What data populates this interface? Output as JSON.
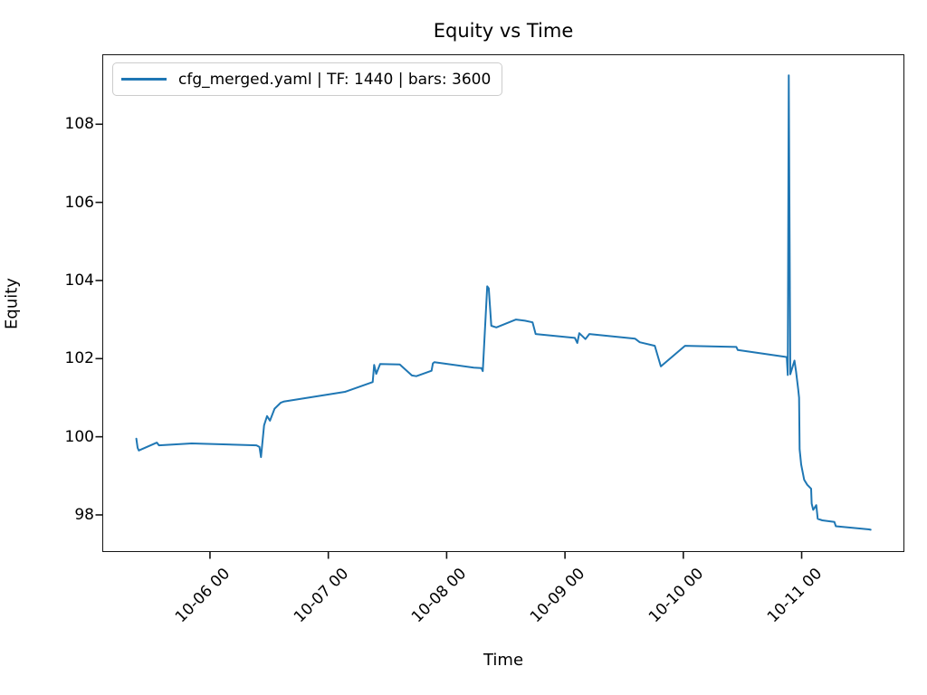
{
  "title": "Equity vs Time",
  "axes": {
    "x_label": "Time",
    "y_label": "Equity"
  },
  "legend": {
    "label": "cfg_merged.yaml | TF: 1440 | bars: 3600",
    "line_color": "#1f77b4",
    "position": "upper left"
  },
  "chart_data": {
    "type": "line",
    "title": "Equity vs Time",
    "xlabel": "Time",
    "ylabel": "Equity",
    "grid": false,
    "legend_position": "upper left",
    "x_unit": "days since 10-05 00:00; tick labels are MM-DD HH dates",
    "xlim": [
      0.09,
      6.868
    ],
    "ylim": [
      97.05,
      109.79
    ],
    "x_ticks": [
      {
        "t": 1,
        "label": "10-06 00"
      },
      {
        "t": 2,
        "label": "10-07 00"
      },
      {
        "t": 3,
        "label": "10-08 00"
      },
      {
        "t": 4,
        "label": "10-09 00"
      },
      {
        "t": 5,
        "label": "10-10 00"
      },
      {
        "t": 6,
        "label": "10-11 00"
      }
    ],
    "y_ticks": [
      98,
      100,
      102,
      104,
      106,
      108
    ],
    "series": [
      {
        "name": "cfg_merged.yaml | TF: 1440 | bars: 3600",
        "color": "#1f77b4",
        "line_width": 2,
        "points": [
          [
            0.378,
            99.95
          ],
          [
            0.388,
            99.72
          ],
          [
            0.398,
            99.65
          ],
          [
            0.551,
            99.85
          ],
          [
            0.569,
            99.78
          ],
          [
            0.845,
            99.83
          ],
          [
            1.393,
            99.78
          ],
          [
            1.418,
            99.74
          ],
          [
            1.431,
            99.48
          ],
          [
            1.457,
            100.29
          ],
          [
            1.482,
            100.53
          ],
          [
            1.507,
            100.41
          ],
          [
            1.546,
            100.72
          ],
          [
            1.597,
            100.87
          ],
          [
            1.622,
            100.9
          ],
          [
            2.14,
            101.15
          ],
          [
            2.375,
            101.4
          ],
          [
            2.387,
            101.84
          ],
          [
            2.405,
            101.61
          ],
          [
            2.438,
            101.86
          ],
          [
            2.604,
            101.85
          ],
          [
            2.706,
            101.57
          ],
          [
            2.744,
            101.55
          ],
          [
            2.872,
            101.69
          ],
          [
            2.884,
            101.88
          ],
          [
            2.897,
            101.91
          ],
          [
            3.229,
            101.77
          ],
          [
            3.293,
            101.76
          ],
          [
            3.305,
            101.68
          ],
          [
            3.343,
            103.85
          ],
          [
            3.356,
            103.8
          ],
          [
            3.377,
            102.84
          ],
          [
            3.42,
            102.8
          ],
          [
            3.586,
            103.0
          ],
          [
            3.662,
            102.97
          ],
          [
            3.726,
            102.93
          ],
          [
            3.752,
            102.63
          ],
          [
            4.083,
            102.53
          ],
          [
            4.104,
            102.4
          ],
          [
            4.121,
            102.65
          ],
          [
            4.173,
            102.5
          ],
          [
            4.206,
            102.63
          ],
          [
            4.593,
            102.51
          ],
          [
            4.632,
            102.42
          ],
          [
            4.759,
            102.33
          ],
          [
            4.81,
            101.8
          ],
          [
            5.014,
            102.33
          ],
          [
            5.448,
            102.3
          ],
          [
            5.46,
            102.22
          ],
          [
            5.805,
            102.07
          ],
          [
            5.851,
            102.05
          ],
          [
            5.874,
            102.04
          ],
          [
            5.883,
            101.58
          ],
          [
            5.891,
            109.25
          ],
          [
            5.904,
            101.6
          ],
          [
            5.939,
            101.95
          ],
          [
            5.952,
            101.68
          ],
          [
            5.971,
            101.22
          ],
          [
            5.978,
            101.0
          ],
          [
            5.983,
            99.68
          ],
          [
            5.988,
            99.52
          ],
          [
            5.996,
            99.29
          ],
          [
            6.021,
            98.9
          ],
          [
            6.047,
            98.77
          ],
          [
            6.08,
            98.67
          ],
          [
            6.085,
            98.29
          ],
          [
            6.098,
            98.13
          ],
          [
            6.124,
            98.25
          ],
          [
            6.136,
            97.9
          ],
          [
            6.174,
            97.86
          ],
          [
            6.277,
            97.82
          ],
          [
            6.289,
            97.71
          ],
          [
            6.57,
            97.63
          ],
          [
            6.583,
            97.62
          ]
        ]
      }
    ]
  }
}
